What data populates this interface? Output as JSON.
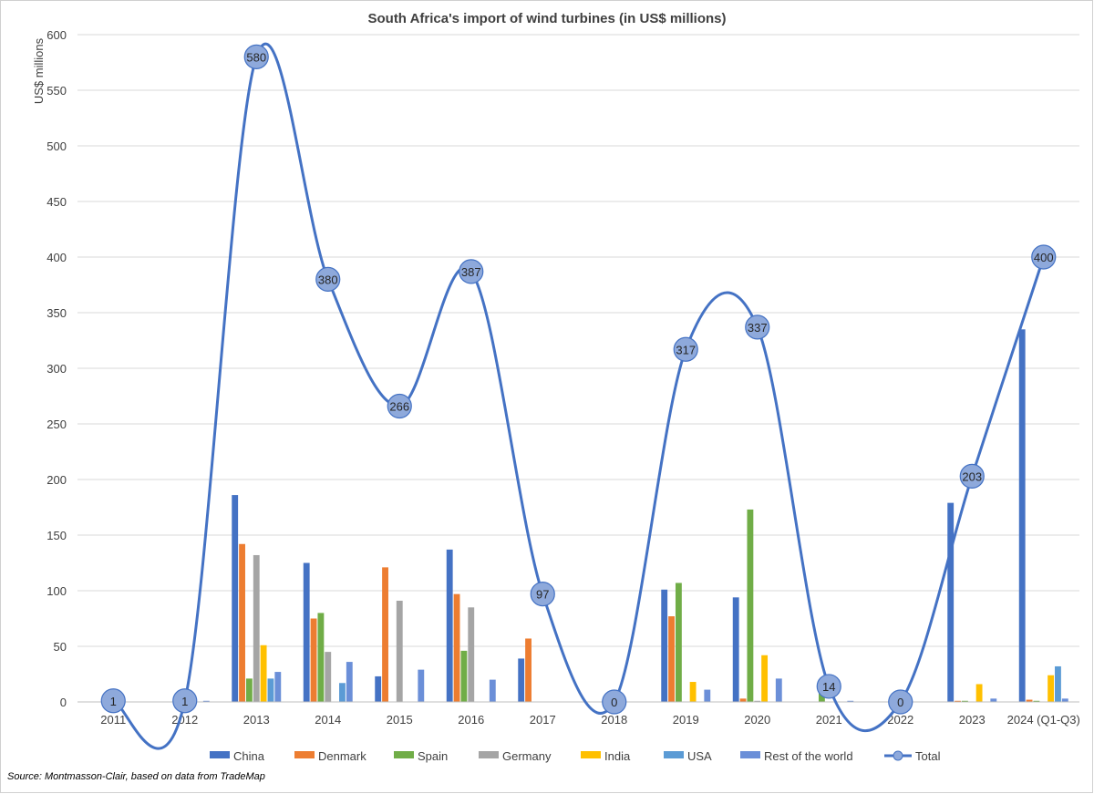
{
  "chart_data": {
    "type": "bar",
    "title": "South Africa's import of wind turbines (in US$ millions)",
    "ylabel": "US$ millions",
    "xlabel": "",
    "ylim": [
      0,
      600
    ],
    "yticks": [
      0,
      50,
      100,
      150,
      200,
      250,
      300,
      350,
      400,
      450,
      500,
      550,
      600
    ],
    "grid": true,
    "legend_position": "bottom",
    "categories": [
      "2011",
      "2012",
      "2013",
      "2014",
      "2015",
      "2016",
      "2017",
      "2018",
      "2019",
      "2020",
      "2021",
      "2022",
      "2023",
      "2024 (Q1-Q3)"
    ],
    "series": [
      {
        "name": "China",
        "color": "#4472C4",
        "values": [
          0,
          0,
          186,
          125,
          23,
          137,
          39,
          0,
          101,
          94,
          0,
          0,
          179,
          335
        ]
      },
      {
        "name": "Denmark",
        "color": "#ED7D31",
        "values": [
          0,
          0,
          142,
          75,
          121,
          97,
          57,
          0,
          77,
          3,
          0,
          0,
          1,
          2
        ]
      },
      {
        "name": "Spain",
        "color": "#70AD47",
        "values": [
          0,
          0,
          21,
          80,
          0,
          46,
          0,
          0,
          107,
          173,
          11,
          0,
          1,
          1
        ]
      },
      {
        "name": "Germany",
        "color": "#A5A5A5",
        "values": [
          0,
          0,
          132,
          45,
          91,
          85,
          0,
          0,
          0,
          1,
          0,
          0,
          0,
          0
        ]
      },
      {
        "name": "India",
        "color": "#FFC000",
        "values": [
          0,
          0,
          51,
          0,
          0,
          0,
          0,
          0,
          18,
          42,
          0,
          0,
          16,
          24
        ]
      },
      {
        "name": "USA",
        "color": "#5B9BD5",
        "values": [
          0,
          0,
          21,
          17,
          0,
          0,
          0,
          0,
          0,
          0,
          0,
          0,
          0,
          32
        ]
      },
      {
        "name": "Rest of the world",
        "color": "#6B8FD8",
        "values": [
          0,
          1,
          27,
          36,
          29,
          20,
          0,
          0,
          11,
          21,
          1,
          0,
          3,
          3
        ]
      }
    ],
    "line_series": {
      "name": "Total",
      "color": "#4472C4",
      "marker_fill": "#8EA9DB",
      "values": [
        1,
        1,
        580,
        380,
        266,
        387,
        97,
        0,
        317,
        337,
        14,
        0,
        203,
        400
      ],
      "labels": [
        "1",
        "1",
        "580",
        "380",
        "266",
        "387",
        "97",
        "0",
        "317",
        "337",
        "14",
        "0",
        "203",
        "400"
      ],
      "smoothed": true
    },
    "source_note": "Source: Montmasson-Clair, based on data from TradeMap"
  }
}
